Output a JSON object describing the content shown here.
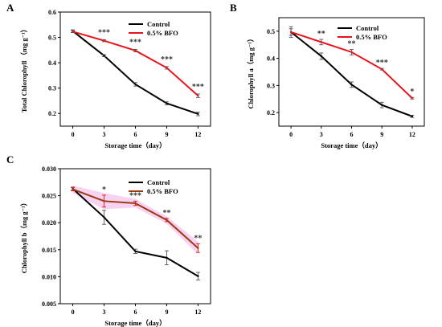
{
  "colors": {
    "control": "#000000",
    "bfo": "#e8141b",
    "bfo_c": "#9b3a12",
    "band_c": "#f6c8ee",
    "errorbar_gray": "#555555"
  },
  "chart_data": [
    {
      "panel": "A",
      "type": "line",
      "xlabel": "Storage time（day）",
      "ylabel": "Total Chlorophyll （mg g⁻¹）",
      "x": [
        0,
        3,
        6,
        9,
        12
      ],
      "xticks": [
        "0",
        "3",
        "6",
        "9",
        "12"
      ],
      "ylim": [
        0.15,
        0.6
      ],
      "yticks": [
        "0.2",
        "0.3",
        "0.4",
        "0.5",
        "0.6"
      ],
      "ytick_values": [
        0.2,
        0.3,
        0.4,
        0.5,
        0.6
      ],
      "legend": "top-right",
      "series": [
        {
          "name": "Control",
          "values": [
            0.525,
            0.428,
            0.315,
            0.24,
            0.198
          ],
          "errors": [
            0.005,
            0.004,
            0.007,
            0.006,
            0.007
          ]
        },
        {
          "name": "0.5% BFO",
          "values": [
            0.523,
            0.487,
            0.448,
            0.38,
            0.27
          ],
          "errors": [
            0.004,
            0.004,
            0.005,
            0.005,
            0.007
          ]
        }
      ],
      "annotations": [
        "***",
        "***",
        "***",
        "***"
      ]
    },
    {
      "panel": "B",
      "type": "line",
      "xlabel": "Storage time（day）",
      "ylabel": "Chlorophyll a（mg g⁻¹）",
      "x": [
        0,
        3,
        6,
        9,
        12
      ],
      "xticks": [
        "0",
        "3",
        "6",
        "9",
        "12"
      ],
      "ylim": [
        0.15,
        0.55
      ],
      "yticks": [
        "0.2",
        "0.3",
        "0.4",
        "0.5"
      ],
      "ytick_values": [
        0.2,
        0.3,
        0.4,
        0.5
      ],
      "legend": "top-right",
      "series": [
        {
          "name": "Control",
          "values": [
            0.497,
            0.408,
            0.303,
            0.228,
            0.186
          ],
          "errors": [
            0.012,
            0.012,
            0.01,
            0.01,
            0.004
          ]
        },
        {
          "name": "0.5% BFO",
          "values": [
            0.497,
            0.46,
            0.423,
            0.36,
            0.253
          ],
          "errors": [
            0.02,
            0.01,
            0.01,
            0.003,
            0.003
          ]
        }
      ],
      "annotations": [
        "**",
        "**",
        "***",
        "*"
      ]
    },
    {
      "panel": "C",
      "type": "line",
      "xlabel": "Storage time（day）",
      "ylabel": "Chlorophyll b（mg g⁻¹）",
      "x": [
        0,
        3,
        6,
        9,
        12
      ],
      "xticks": [
        "0",
        "3",
        "6",
        "9",
        "12"
      ],
      "ylim": [
        0.005,
        0.03
      ],
      "yticks": [
        "0.005",
        "0.010",
        "0.015",
        "0.020",
        "0.025",
        "0.030"
      ],
      "ytick_values": [
        0.005,
        0.01,
        0.015,
        0.02,
        0.025,
        0.03
      ],
      "legend": "top-right",
      "series": [
        {
          "name": "Control",
          "values": [
            0.0263,
            0.021,
            0.0147,
            0.0135,
            0.0101
          ],
          "errors": [
            0.0003,
            0.0013,
            0.0004,
            0.0013,
            0.0007
          ]
        },
        {
          "name": "0.5% BFO",
          "values": [
            0.0262,
            0.024,
            0.0236,
            0.0205,
            0.0153
          ],
          "errors": [
            0.0003,
            0.0011,
            0.0004,
            0.0003,
            0.0008
          ]
        }
      ],
      "annotations": [
        "*",
        "***",
        "**",
        "**"
      ]
    }
  ]
}
